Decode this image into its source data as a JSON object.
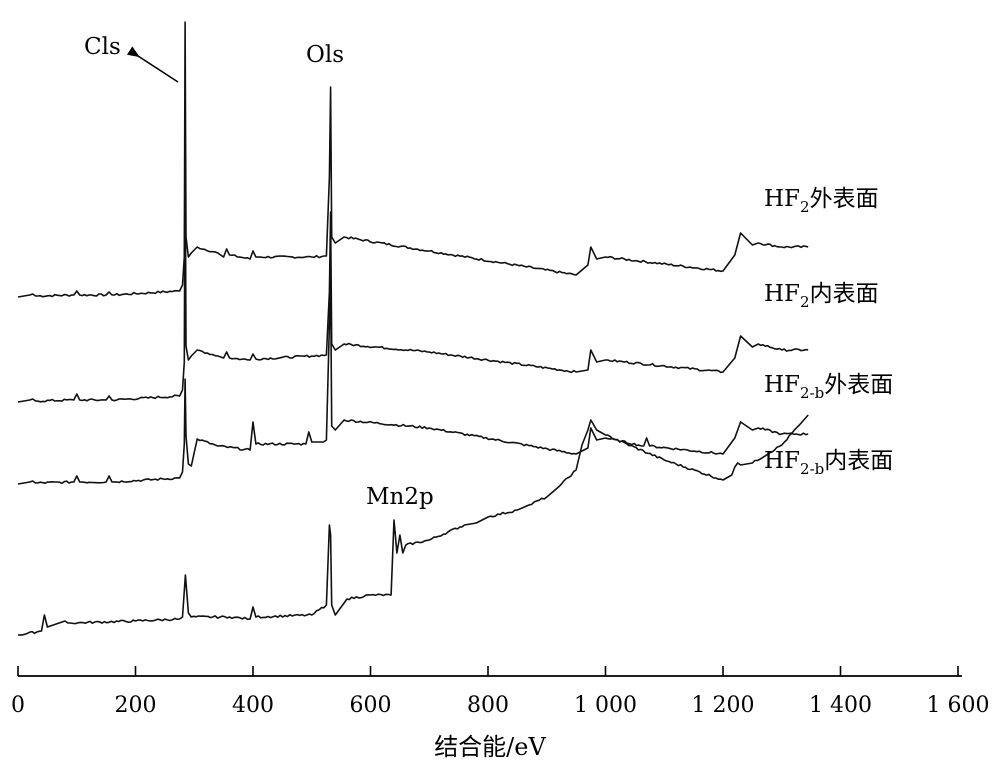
{
  "chart_data": {
    "type": "line",
    "xlabel": "结合能/eV",
    "ylabel": "",
    "xlim": [
      0,
      1600
    ],
    "xticks": [
      0,
      200,
      400,
      600,
      800,
      1000,
      1200,
      1400,
      1600
    ],
    "xtick_labels": [
      "0",
      "200",
      "400",
      "600",
      "800",
      "1 000",
      "1 200",
      "1 400",
      "1 600"
    ],
    "yaxis_visible": false,
    "grid": false,
    "series": [
      {
        "label_main": "HF",
        "label_sub": "2",
        "label_suffix": "外表面",
        "x": [
          0,
          20,
          25,
          30,
          95,
          100,
          105,
          150,
          155,
          160,
          275,
          280,
          283,
          284.5,
          286,
          290,
          295,
          305,
          340,
          350,
          355,
          360,
          395,
          400,
          405,
          500,
          525,
          530,
          532,
          534,
          540,
          555,
          700,
          950,
          970,
          975,
          985,
          1000,
          1200,
          1220,
          1230,
          1250,
          1260,
          1300,
          1345
        ],
        "y": [
          0,
          2,
          3,
          1,
          2,
          6,
          2,
          2,
          5,
          2,
          6,
          12,
          40,
          275,
          60,
          40,
          44,
          50,
          44,
          40,
          48,
          42,
          38,
          46,
          40,
          40,
          41,
          120,
          210,
          60,
          54,
          60,
          46,
          22,
          32,
          50,
          38,
          40,
          26,
          42,
          64,
          52,
          54,
          50,
          50
        ]
      },
      {
        "label_main": "HF",
        "label_sub": "2",
        "label_suffix": "内表面",
        "x": [
          0,
          20,
          25,
          30,
          95,
          100,
          105,
          150,
          155,
          160,
          275,
          280,
          283,
          284.5,
          286,
          290,
          295,
          305,
          340,
          350,
          355,
          360,
          395,
          400,
          405,
          500,
          525,
          530,
          532,
          534,
          540,
          555,
          700,
          950,
          970,
          975,
          985,
          1000,
          1200,
          1220,
          1230,
          1250,
          1260,
          1300,
          1345
        ],
        "y": [
          0,
          2,
          3,
          1,
          2,
          8,
          2,
          2,
          6,
          2,
          6,
          12,
          40,
          270,
          56,
          42,
          46,
          52,
          46,
          44,
          50,
          44,
          42,
          48,
          43,
          46,
          47,
          110,
          190,
          58,
          52,
          58,
          50,
          30,
          32,
          52,
          40,
          42,
          30,
          44,
          66,
          55,
          58,
          52,
          52
        ]
      },
      {
        "label_main": "HF",
        "label_sub": "2-b",
        "label_suffix": "外表面",
        "x": [
          0,
          20,
          25,
          30,
          95,
          100,
          105,
          150,
          155,
          160,
          275,
          280,
          283,
          284.5,
          286,
          290,
          295,
          305,
          340,
          395,
          400,
          405,
          490,
          495,
          500,
          520,
          525,
          530,
          532,
          534,
          540,
          555,
          700,
          950,
          970,
          975,
          985,
          1000,
          1065,
          1070,
          1075,
          1200,
          1220,
          1230,
          1250,
          1260,
          1300,
          1345
        ],
        "y": [
          0,
          2,
          3,
          1,
          2,
          8,
          2,
          2,
          8,
          2,
          6,
          12,
          40,
          105,
          48,
          20,
          18,
          45,
          38,
          34,
          62,
          40,
          40,
          52,
          42,
          42,
          44,
          160,
          205,
          58,
          54,
          64,
          56,
          30,
          36,
          56,
          44,
          46,
          38,
          46,
          38,
          30,
          46,
          62,
          54,
          56,
          50,
          50
        ]
      },
      {
        "label_main": "HF",
        "label_sub": "2-b",
        "label_suffix": "内表面",
        "x": [
          0,
          40,
          45,
          50,
          60,
          80,
          85,
          90,
          200,
          275,
          280,
          285,
          290,
          295,
          360,
          395,
          400,
          405,
          500,
          525,
          530,
          532,
          534,
          540,
          560,
          600,
          635,
          640,
          645,
          650,
          655,
          660,
          700,
          760,
          780,
          800,
          850,
          870,
          900,
          920,
          950,
          960,
          970,
          975,
          985,
          1000,
          1100,
          1200,
          1215,
          1220,
          1225,
          1230,
          1250,
          1300,
          1330,
          1345
        ],
        "y": [
          0,
          4,
          20,
          8,
          10,
          14,
          12,
          12,
          14,
          16,
          18,
          60,
          22,
          18,
          18,
          16,
          28,
          18,
          20,
          30,
          110,
          100,
          30,
          20,
          36,
          40,
          40,
          115,
          82,
          100,
          82,
          90,
          95,
          110,
          112,
          118,
          125,
          130,
          138,
          148,
          165,
          190,
          205,
          215,
          205,
          200,
          175,
          155,
          160,
          168,
          172,
          170,
          172,
          190,
          210,
          220
        ]
      }
    ],
    "annotations": [
      {
        "text": "Cls"
      },
      {
        "text": "Ols"
      },
      {
        "text": "Mn2p"
      }
    ]
  }
}
